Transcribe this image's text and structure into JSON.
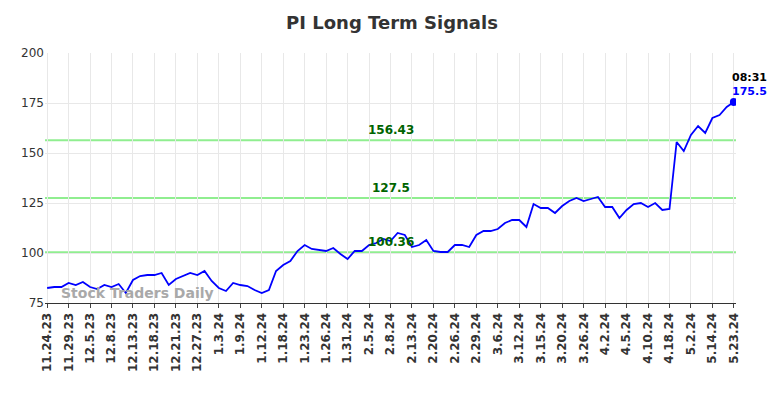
{
  "chart_data": {
    "type": "line",
    "title": "PI Long Term Signals",
    "categories": [
      "11.24.23",
      null,
      null,
      "11.29.23",
      null,
      null,
      "12.5.23",
      null,
      null,
      "12.8.23",
      null,
      null,
      "12.13.23",
      null,
      null,
      "12.18.23",
      null,
      null,
      "12.21.23",
      null,
      null,
      "12.27.23",
      null,
      null,
      "1.3.24",
      null,
      null,
      "1.9.24",
      null,
      null,
      "1.12.24",
      null,
      null,
      "1.18.24",
      null,
      null,
      "1.23.24",
      null,
      null,
      "1.26.24",
      null,
      null,
      "1.31.24",
      null,
      null,
      "2.5.24",
      null,
      null,
      "2.8.24",
      null,
      null,
      "2.13.24",
      null,
      null,
      "2.20.24",
      null,
      null,
      "2.26.24",
      null,
      null,
      "2.29.24",
      null,
      null,
      "3.6.24",
      null,
      null,
      "3.12.24",
      null,
      null,
      "3.15.24",
      null,
      null,
      "3.20.24",
      null,
      null,
      "3.26.24",
      null,
      null,
      "4.2.24",
      null,
      null,
      "4.5.24",
      null,
      null,
      "4.10.24",
      null,
      null,
      "4.18.24",
      null,
      null,
      "5.2.24",
      null,
      null,
      "5.14.24",
      null,
      null,
      "5.23.24"
    ],
    "values": [
      82.5,
      83,
      83,
      85,
      84,
      85.5,
      83,
      82,
      84,
      83,
      84.5,
      80,
      86.5,
      88.5,
      89,
      89,
      90,
      84,
      87,
      88.5,
      90,
      89,
      91,
      86,
      82.5,
      81,
      85,
      84,
      83.5,
      81.5,
      80,
      81.5,
      91,
      94,
      96,
      101,
      104,
      102,
      101.5,
      101,
      102.5,
      99.5,
      97,
      101,
      101,
      104,
      105,
      107,
      106,
      110,
      109,
      103,
      104,
      106.5,
      101,
      100.5,
      100.5,
      104,
      104,
      103,
      109,
      111,
      111,
      112,
      115,
      116.5,
      116.5,
      113,
      124.5,
      122.5,
      122.5,
      120,
      123.5,
      126,
      127.5,
      126,
      127,
      128,
      123,
      123,
      117.5,
      121.5,
      124.5,
      125,
      123,
      125,
      121.5,
      122,
      155.5,
      151,
      159,
      163.5,
      160,
      167.5,
      169,
      173,
      175.5
    ],
    "color": "#0000ff",
    "levels": [
      156.43,
      127.5,
      100.36
    ],
    "level_color": "#90ee90",
    "annotations": [
      "08:31"
    ],
    "watermark": "Stock Traders Daily",
    "ylim": [
      75,
      200
    ],
    "yticks": [
      75,
      100,
      125,
      150,
      175,
      200
    ],
    "grid": true,
    "marker": "circle"
  }
}
